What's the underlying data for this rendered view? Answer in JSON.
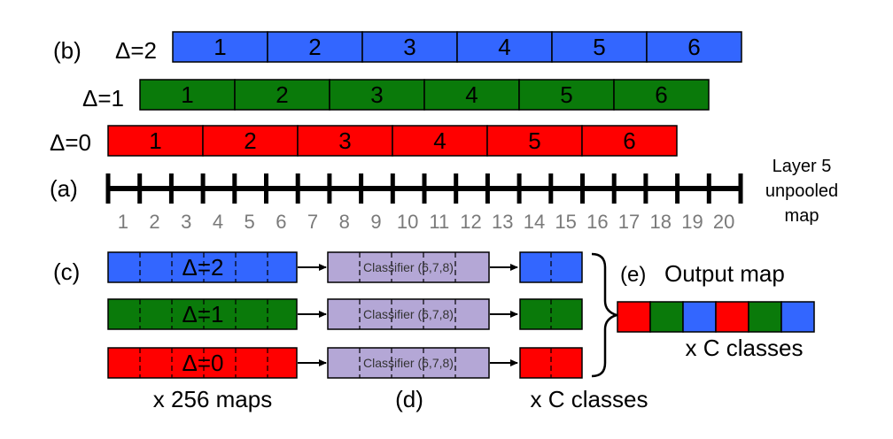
{
  "colors": {
    "blue": "#3366ff",
    "green": "#0a7a0a",
    "red": "#ff0000",
    "classifier": "#b4a7d6",
    "tick_text": "#7a7a7a",
    "black": "#000000"
  },
  "panel_b": {
    "label": "(b)",
    "rows": [
      {
        "delta": "Δ=2",
        "color": "blue",
        "cells": [
          "1",
          "2",
          "3",
          "4",
          "5",
          "6"
        ]
      },
      {
        "delta": "Δ=1",
        "color": "green",
        "cells": [
          "1",
          "2",
          "3",
          "4",
          "5",
          "6"
        ]
      },
      {
        "delta": "Δ=0",
        "color": "red",
        "cells": [
          "1",
          "2",
          "3",
          "4",
          "5",
          "6"
        ]
      }
    ]
  },
  "panel_a": {
    "label": "(a)",
    "ticks": [
      "1",
      "2",
      "3",
      "4",
      "5",
      "6",
      "7",
      "8",
      "9",
      "10",
      "11",
      "12",
      "13",
      "14",
      "15",
      "16",
      "17",
      "18",
      "19",
      "20"
    ],
    "caption_lines": [
      "Layer 5",
      "unpooled",
      "map"
    ]
  },
  "panel_c": {
    "label": "(c)",
    "rows": [
      {
        "delta": "Δ=2",
        "color": "blue",
        "classifier": "Classifier (6,7,8)"
      },
      {
        "delta": "Δ=1",
        "color": "green",
        "classifier": "Classifier (6,7,8)"
      },
      {
        "delta": "Δ=0",
        "color": "red",
        "classifier": "Classifier (6,7,8)"
      }
    ],
    "maps_caption": "x 256 maps",
    "d_label": "(d)",
    "classes_caption": "x C classes"
  },
  "panel_e": {
    "label": "(e)",
    "title": "Output map",
    "cells": [
      "red",
      "green",
      "blue",
      "red",
      "green",
      "blue"
    ],
    "caption": "x C classes"
  }
}
